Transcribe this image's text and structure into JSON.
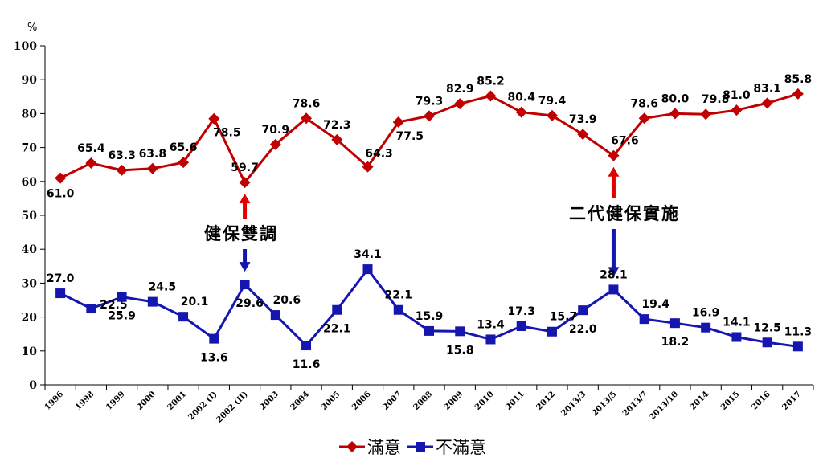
{
  "chart_data": {
    "type": "line",
    "ylabel_unit": "%",
    "ylim": [
      0,
      100
    ],
    "yticks": [
      "0",
      "10",
      "20",
      "30",
      "40",
      "50",
      "60",
      "70",
      "80",
      "90",
      "100"
    ],
    "grid": false,
    "legend_position": "bottom",
    "categories": [
      "1996",
      "1998",
      "1999",
      "2000",
      "2001",
      "2002 (I)",
      "2002 (II)",
      "2003",
      "2004",
      "2005",
      "2006",
      "2007",
      "2008",
      "2009",
      "2010",
      "2011",
      "2012",
      "2013/3",
      "2013/5",
      "2013/7",
      "2013/10",
      "2014",
      "2015",
      "2016",
      "2017"
    ],
    "series": [
      {
        "name": "滿意",
        "color": "#C00000",
        "marker": "diamond",
        "values": [
          61.0,
          65.4,
          63.3,
          63.8,
          65.6,
          78.5,
          59.7,
          70.9,
          78.6,
          72.3,
          64.3,
          77.5,
          79.3,
          82.9,
          85.2,
          80.4,
          79.4,
          73.9,
          67.6,
          78.6,
          80.0,
          79.8,
          81.0,
          83.1,
          85.8
        ],
        "labels": [
          "61.0",
          "65.4",
          "63.3",
          "63.8",
          "65.6",
          "78.5",
          "59.7",
          "70.9",
          "78.6",
          "72.3",
          "64.3",
          "77.5",
          "79.3",
          "82.9",
          "85.2",
          "80.4",
          "79.4",
          "73.9",
          "67.6",
          "78.6",
          "80.0",
          "79.8",
          "81.0",
          "83.1",
          "85.8"
        ]
      },
      {
        "name": "不滿意",
        "color": "#1515B0",
        "marker": "square",
        "values": [
          27.0,
          22.5,
          25.9,
          24.5,
          20.1,
          13.6,
          29.6,
          20.6,
          11.6,
          22.1,
          34.1,
          22.1,
          15.9,
          15.8,
          13.4,
          17.3,
          15.7,
          22.0,
          28.1,
          19.4,
          18.2,
          16.9,
          14.1,
          12.5,
          11.3
        ],
        "labels": [
          "27.0",
          "22.5",
          "25.9",
          "24.5",
          "20.1",
          "13.6",
          "29.6",
          "20.6",
          "11.6",
          "22.1",
          "34.1",
          "22.1",
          "15.9",
          "15.8",
          "13.4",
          "17.3",
          "15.7",
          "22.0",
          "28.1",
          "19.4",
          "18.2",
          "16.9",
          "14.1",
          "12.5",
          "11.3"
        ]
      }
    ],
    "annotations": [
      {
        "text": "健保雙調",
        "category": "2002 (II)"
      },
      {
        "text": "二代健保實施",
        "category": "2013/5"
      }
    ]
  }
}
